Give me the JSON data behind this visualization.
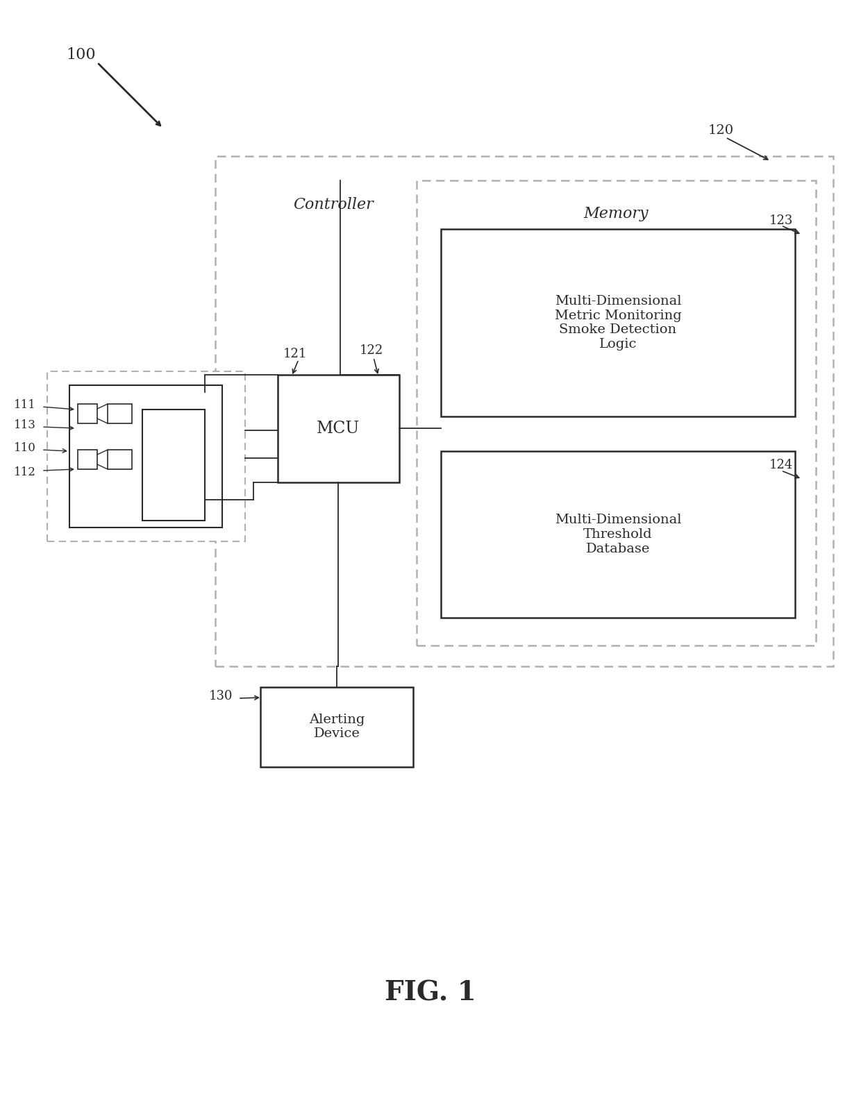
{
  "bg_color": "#ffffff",
  "fig_label": "FIG. 1",
  "label_100": "100",
  "label_110": "110",
  "label_111": "111",
  "label_112": "112",
  "label_113": "113",
  "label_120": "120",
  "label_121": "121",
  "label_122": "122",
  "label_123": "123",
  "label_124": "124",
  "label_130": "130",
  "text_controller": "Controller",
  "text_memory": "Memory",
  "text_mcu": "MCU",
  "text_logic": "Multi-Dimensional\nMetric Monitoring\nSmoke Detection\nLogic",
  "text_db": "Multi-Dimensional\nThreshold\nDatabase",
  "text_alert": "Alerting\nDevice",
  "line_color": "#2a2a2a",
  "box_color": "#2a2a2a",
  "gray_dash": "#b0b0b0"
}
